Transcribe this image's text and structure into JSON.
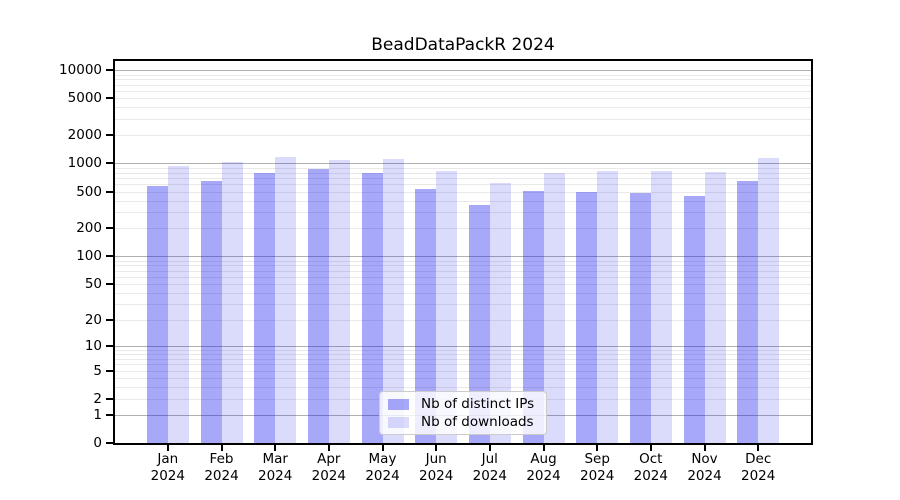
{
  "title": "BeadDataPackR 2024",
  "chart_data": {
    "type": "bar",
    "title": "BeadDataPackR 2024",
    "categories": [
      "Jan",
      "Feb",
      "Mar",
      "Apr",
      "May",
      "Jun",
      "Jul",
      "Aug",
      "Sep",
      "Oct",
      "Nov",
      "Dec"
    ],
    "category_year": "2024",
    "series": [
      {
        "name": "Nb of distinct IPs",
        "color": "rgba(15,15,235,0.36)",
        "values": [
          570,
          645,
          800,
          870,
          795,
          530,
          360,
          505,
          490,
          480,
          445,
          645
        ]
      },
      {
        "name": "Nb of downloads",
        "color": "rgba(15,15,235,0.15)",
        "values": [
          950,
          1050,
          1160,
          1090,
          1110,
          825,
          610,
          790,
          840,
          840,
          820,
          1150
        ]
      }
    ],
    "xlabel": "",
    "ylabel": "",
    "y_axis": {
      "scale": "log1p",
      "tick_values": [
        10000,
        5000,
        2000,
        1000,
        500,
        200,
        100,
        50,
        20,
        10,
        5,
        2,
        1,
        0
      ],
      "major_grid_values": [
        1,
        10,
        100,
        1000,
        10000
      ],
      "ylim": [
        0,
        12500
      ]
    },
    "grid": "on",
    "legend": {
      "position": "bottom-center",
      "entries": [
        "Nb of distinct IPs",
        "Nb of downloads"
      ]
    }
  },
  "colors": {
    "bar_distinct_ips": "#a8a8f4",
    "bar_downloads": "#dcdcf8",
    "grid_major": "#b0b0b0",
    "grid_minor": "#e9e9e9",
    "spine": "#000000",
    "text": "#000000"
  }
}
